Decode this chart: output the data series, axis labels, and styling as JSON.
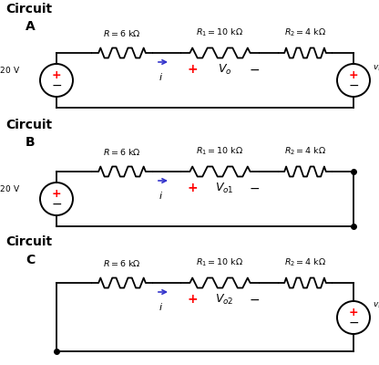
{
  "wire_color": "#000000",
  "resistor_color": "#000000",
  "plus_color": "#cc0000",
  "minus_color": "#000000",
  "arrow_color": "#3333cc",
  "source_edge_color": "#000000",
  "background": "#ffffff",
  "circuits": [
    {
      "Vo_sub": "o",
      "has_vs1": true,
      "has_vs2": true,
      "dot_right": false,
      "dot_left": false,
      "dot_right_mid": false
    },
    {
      "Vo_sub": "o1",
      "has_vs1": true,
      "has_vs2": false,
      "dot_right": true,
      "dot_left": false,
      "dot_right_mid": true
    },
    {
      "Vo_sub": "o2",
      "has_vs1": false,
      "has_vs2": true,
      "dot_right": false,
      "dot_left": true,
      "dot_right_mid": false
    }
  ],
  "circuit_labels": [
    "A",
    "B",
    "C"
  ],
  "figsize": [
    4.16,
    4.0
  ],
  "dpi": 100
}
